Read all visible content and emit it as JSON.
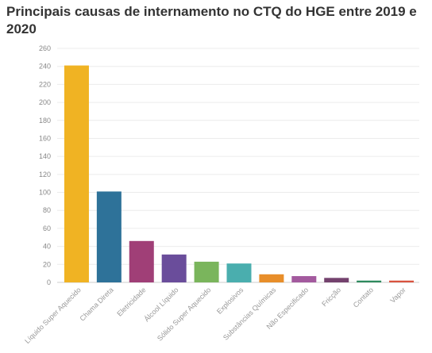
{
  "chart_data": {
    "type": "bar",
    "title": "Principais causas de internamento no CTQ do HGE entre 2019 e 2020",
    "xlabel": "",
    "ylabel": "",
    "ylim": [
      0,
      260
    ],
    "yticks": [
      0,
      20,
      40,
      60,
      80,
      100,
      120,
      140,
      160,
      180,
      200,
      220,
      240,
      260
    ],
    "grid": true,
    "categories": [
      "Líquido Super Aquecido",
      "Chama Direta",
      "Eletricidade",
      "Álcool Líquido",
      "Sólido Super Aquecido",
      "Explosivos",
      "Substâncias Químicas",
      "Não Especificado",
      "Fricção",
      "Contato",
      "Vapor"
    ],
    "values": [
      241,
      101,
      46,
      31,
      23,
      21,
      9,
      7,
      5,
      2,
      2
    ],
    "colors": [
      "#f0b323",
      "#2e7299",
      "#a03f77",
      "#6a4d9b",
      "#7ab55c",
      "#4aaeae",
      "#e88e2a",
      "#a35a9e",
      "#74426e",
      "#2e8a5e",
      "#d9533f"
    ]
  }
}
